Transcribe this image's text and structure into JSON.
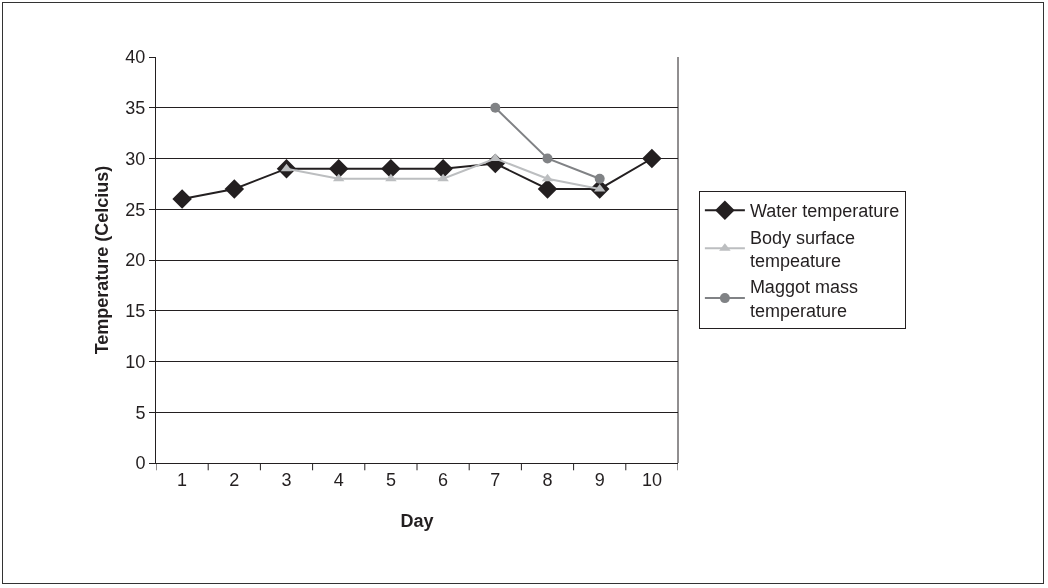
{
  "chart_data": {
    "type": "line",
    "xlabel": "Day",
    "ylabel": "Temperature (Celcius)",
    "categories": [
      "1",
      "2",
      "3",
      "4",
      "5",
      "6",
      "7",
      "8",
      "9",
      "10"
    ],
    "series": [
      {
        "name": "Water temperature",
        "color": "#231f20",
        "marker": "diamond",
        "values": [
          26,
          27,
          29,
          29,
          29,
          29,
          29.5,
          27,
          27,
          30
        ]
      },
      {
        "name": "Body surface\ntempeature",
        "color": "#bcbec0",
        "marker": "triangle",
        "values": [
          null,
          null,
          29,
          28,
          28,
          28,
          30,
          28,
          27,
          null
        ]
      },
      {
        "name": "Maggot mass\ntemperature",
        "color": "#808285",
        "marker": "circle",
        "values": [
          null,
          null,
          null,
          null,
          null,
          null,
          35,
          30,
          28,
          null
        ]
      }
    ],
    "ylim": [
      0,
      40
    ],
    "yticks": [
      0,
      5,
      10,
      15,
      20,
      25,
      30,
      35,
      40
    ],
    "grid": "y",
    "legend": "right"
  }
}
